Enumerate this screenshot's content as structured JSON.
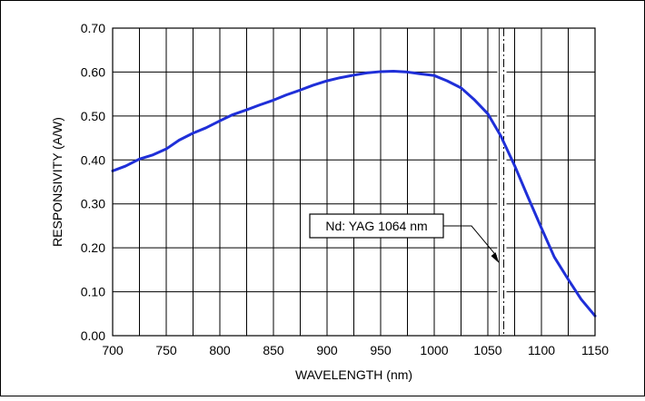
{
  "chart_data": {
    "type": "line",
    "title": "",
    "xlabel": "WAVELENGTH (nm)",
    "ylabel": "RESPONSIVITY (A/W)",
    "xlim": [
      700,
      1150
    ],
    "ylim": [
      0,
      0.7
    ],
    "x_major_ticks": [
      700,
      750,
      800,
      850,
      900,
      950,
      1000,
      1050,
      1100,
      1150
    ],
    "x_major_tick_labels": [
      "700",
      "750",
      "800",
      "850",
      "900",
      "950",
      "1000",
      "1050",
      "1100",
      "1150"
    ],
    "x_minor_step": 25,
    "y_ticks": [
      0,
      0.1,
      0.2,
      0.3,
      0.4,
      0.5,
      0.6,
      0.7
    ],
    "y_tick_labels": [
      "0.00",
      "0.10",
      "0.20",
      "0.30",
      "0.40",
      "0.50",
      "0.60",
      "0.70"
    ],
    "grid": true,
    "series": [
      {
        "color": "#1f2fd8",
        "x": [
          700,
          712,
          725,
          737,
          750,
          762,
          775,
          787,
          800,
          812,
          825,
          837,
          850,
          862,
          875,
          887,
          900,
          912,
          925,
          937,
          950,
          962,
          975,
          987,
          1000,
          1012,
          1025,
          1037,
          1050,
          1062,
          1075,
          1087,
          1100,
          1112,
          1125,
          1137,
          1150
        ],
        "y": [
          0.375,
          0.386,
          0.402,
          0.411,
          0.425,
          0.445,
          0.461,
          0.473,
          0.489,
          0.503,
          0.514,
          0.525,
          0.536,
          0.548,
          0.559,
          0.57,
          0.58,
          0.587,
          0.593,
          0.598,
          0.601,
          0.602,
          0.6,
          0.596,
          0.592,
          0.58,
          0.564,
          0.538,
          0.505,
          0.455,
          0.387,
          0.318,
          0.245,
          0.179,
          0.128,
          0.083,
          0.045
        ]
      }
    ],
    "annotations": [
      {
        "text": "Nd: YAG 1064 nm",
        "x": 1064,
        "color": "#000000"
      }
    ],
    "reference_lines": [
      {
        "x": 1064,
        "style": "dash-dot"
      }
    ]
  }
}
